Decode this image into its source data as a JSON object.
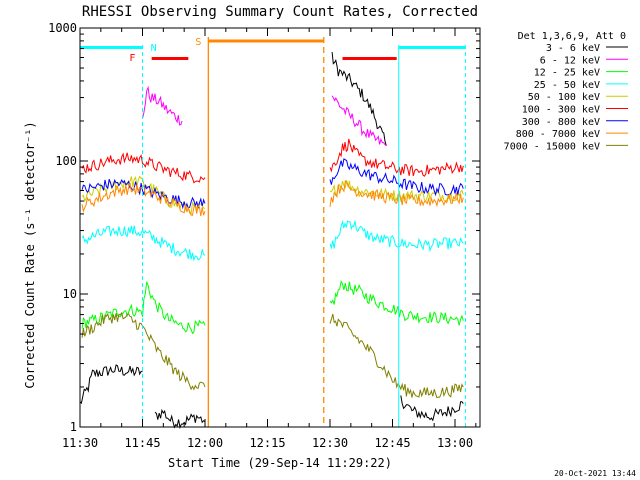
{
  "chart_data": {
    "type": "line",
    "title": "RHESSI Observing Summary Count Rates, Corrected",
    "xlabel": "Start Time (29-Sep-14 11:29:22)",
    "ylabel": "Corrected Count Rate (s⁻¹ detector⁻¹)",
    "y_scale": "log",
    "ylim": [
      1,
      1000
    ],
    "xlim_minutes_after_1130": [
      0,
      96
    ],
    "x_ticks": [
      {
        "label": "11:30",
        "t": 0
      },
      {
        "label": "11:45",
        "t": 15
      },
      {
        "label": "12:00",
        "t": 30
      },
      {
        "label": "12:15",
        "t": 45
      },
      {
        "label": "12:30",
        "t": 60
      },
      {
        "label": "12:45",
        "t": 75
      },
      {
        "label": "13:00",
        "t": 90
      }
    ],
    "y_ticks": [
      {
        "label": "1",
        "v": 1
      },
      {
        "label": "10",
        "v": 10
      },
      {
        "label": "100",
        "v": 100
      },
      {
        "label": "1000",
        "v": 1000
      }
    ],
    "legend_header": "Det 1,3,6,9, Att 0",
    "legend_placement": "right",
    "series": [
      {
        "name": "3 - 6 keV",
        "color": "#000000",
        "segments": [
          {
            "t": [
              0,
              2,
              3,
              8,
              12,
              15
            ],
            "v": [
              1.5,
              2,
              2.5,
              2.7,
              2.6,
              2.6
            ]
          },
          {
            "t": [
              18,
              20,
              22,
              25,
              28,
              30
            ],
            "v": [
              1.2,
              1.3,
              1.1,
              1.1,
              1.2,
              1.1
            ]
          },
          {
            "t": [
              60.5,
              62,
              65,
              68,
              70,
              72,
              73.5
            ],
            "v": [
              600,
              480,
              400,
              310,
              240,
              175,
              130
            ]
          },
          {
            "t": [
              77,
              80,
              84,
              88,
              90,
              92
            ],
            "v": [
              1.6,
              1.3,
              1.2,
              1.3,
              1.4,
              1.5
            ]
          }
        ]
      },
      {
        "name": "6 - 12 keV",
        "color": "#ff00ff",
        "segments": [
          {
            "t": [
              15,
              16,
              17,
              19,
              21,
              23,
              24.5
            ],
            "v": [
              200,
              340,
              300,
              280,
              240,
              215,
              200
            ]
          },
          {
            "t": [
              60.5,
              62,
              64,
              66,
              68,
              70,
              73.5
            ],
            "v": [
              310,
              270,
              230,
              200,
              170,
              150,
              130
            ]
          }
        ]
      },
      {
        "name": "12 - 25 keV",
        "color": "#00ff00",
        "segments": [
          {
            "t": [
              0.5,
              3,
              6,
              9,
              12,
              15,
              16,
              18,
              21,
              24,
              27,
              30
            ],
            "v": [
              6,
              6.3,
              6.8,
              7.3,
              7.6,
              7.3,
              12,
              8.5,
              6.5,
              5.8,
              5.6,
              5.8
            ]
          },
          {
            "t": [
              60,
              61,
              63,
              65,
              67,
              69,
              72,
              75,
              78,
              81,
              84,
              87,
              90,
              92
            ],
            "v": [
              8,
              9,
              12,
              11,
              10.5,
              9.5,
              8.5,
              7.8,
              7,
              6.8,
              6.7,
              6.6,
              6.5,
              6.3
            ]
          }
        ]
      },
      {
        "name": "25 - 50 keV",
        "color": "#00ffff",
        "segments": [
          {
            "t": [
              0.5,
              3,
              6,
              9,
              12,
              15,
              18,
              21,
              24,
              27,
              30
            ],
            "v": [
              25,
              27,
              29,
              30,
              30,
              29,
              26,
              23,
              21,
              20,
              19.5
            ]
          },
          {
            "t": [
              60,
              61,
              63,
              64.5,
              66,
              68,
              71,
              74,
              77,
              80,
              84,
              88,
              92
            ],
            "v": [
              22,
              24,
              32,
              35,
              33,
              29,
              26,
              25,
              24,
              23.5,
              23.5,
              24,
              24
            ]
          }
        ]
      },
      {
        "name": "50 - 100 keV",
        "color": "#cccc00",
        "segments": [
          {
            "t": [
              0.5,
              3,
              6,
              9,
              12,
              15,
              18,
              21,
              24,
              27,
              30
            ],
            "v": [
              52,
              57,
              62,
              67,
              70,
              70,
              60,
              50,
              46,
              44,
              44
            ]
          },
          {
            "t": [
              60,
              61,
              63,
              65,
              67,
              70,
              73,
              76,
              80,
              84,
              88,
              92
            ],
            "v": [
              55,
              60,
              70,
              65,
              60,
              58,
              56,
              55,
              55,
              55,
              55,
              56
            ]
          }
        ]
      },
      {
        "name": "100 - 300 keV",
        "color": "#ff0000",
        "segments": [
          {
            "t": [
              0.5,
              3,
              6,
              9,
              12,
              15,
              18,
              21,
              24,
              27,
              30
            ],
            "v": [
              88,
              92,
              98,
              103,
              105,
              102,
              92,
              85,
              80,
              76,
              75
            ]
          },
          {
            "t": [
              60,
              61,
              63,
              64.5,
              66,
              68,
              71,
              74,
              77,
              80,
              84,
              88,
              92
            ],
            "v": [
              85,
              95,
              125,
              135,
              115,
              102,
              95,
              90,
              86,
              84,
              85,
              88,
              92
            ]
          }
        ]
      },
      {
        "name": "300 - 800 keV",
        "color": "#0000ff",
        "segments": [
          {
            "t": [
              0.5,
              3,
              6,
              9,
              12,
              15,
              18,
              21,
              24,
              27,
              30
            ],
            "v": [
              60,
              63,
              66,
              68,
              66,
              62,
              57,
              53,
              50,
              48,
              48
            ]
          },
          {
            "t": [
              60,
              61,
              63,
              65,
              68,
              71,
              74,
              77,
              80,
              84,
              88,
              92
            ],
            "v": [
              70,
              78,
              95,
              90,
              82,
              76,
              72,
              68,
              64,
              62,
              61,
              62
            ]
          }
        ]
      },
      {
        "name": "800 - 7000 keV",
        "color": "#ff8800",
        "segments": [
          {
            "t": [
              0.5,
              3,
              6,
              9,
              12,
              15,
              18,
              21,
              24,
              27,
              30
            ],
            "v": [
              46,
              50,
              55,
              60,
              62,
              60,
              55,
              50,
              46,
              43,
              42
            ]
          },
          {
            "t": [
              60,
              61,
              63,
              65,
              68,
              71,
              74,
              77,
              80,
              84,
              88,
              92
            ],
            "v": [
              50,
              56,
              66,
              62,
              58,
              55,
              53,
              51,
              50,
              50,
              51,
              53
            ]
          }
        ]
      },
      {
        "name": "7000 - 15000 keV",
        "color": "#808000",
        "segments": [
          {
            "t": [
              0.5,
              3,
              6,
              9,
              12,
              15,
              17,
              19,
              21,
              23,
              25,
              27,
              30
            ],
            "v": [
              5,
              5.6,
              6.5,
              6.8,
              6.5,
              5.6,
              4.5,
              3.6,
              3.1,
              2.6,
              2.3,
              2.1,
              2.0
            ]
          },
          {
            "t": [
              60,
              62,
              64,
              66,
              68,
              70,
              72,
              74,
              76,
              78,
              80,
              82,
              86,
              90,
              92
            ],
            "v": [
              6.5,
              6.2,
              5.5,
              4.8,
              4.2,
              3.6,
              3.0,
              2.5,
              2.1,
              1.9,
              1.8,
              1.8,
              1.8,
              1.9,
              2.0
            ]
          }
        ]
      }
    ],
    "annotations": {
      "night_color": "#00ffff",
      "saa_color": "#ff8800",
      "flare_color": "#ff0000",
      "night_bars": [
        {
          "t_start": 0,
          "t_end": 15
        },
        {
          "t_start": 76.5,
          "t_end": 92.5
        }
      ],
      "night_label": "N",
      "night_label_t": 15.5,
      "night_lines": [
        {
          "t": 0,
          "style": "solid"
        },
        {
          "t": 15,
          "style": "dashed"
        },
        {
          "t": 76.5,
          "style": "solid"
        },
        {
          "t": 92.5,
          "style": "dashed"
        }
      ],
      "saa_bar": {
        "t_start": 30.8,
        "t_end": 58.5
      },
      "saa_label": "S",
      "saa_lines": [
        {
          "t": 30.8,
          "style": "solid"
        },
        {
          "t": 58.5,
          "style": "dashed"
        }
      ],
      "flare_bars": [
        {
          "t_start": 17.2,
          "t_end": 26.0
        },
        {
          "t_start": 63.0,
          "t_end": 76.0
        }
      ],
      "flare_label": "F",
      "flare_label_t": 15.2
    },
    "timestamp": "20-Oct-2021 13:44"
  }
}
